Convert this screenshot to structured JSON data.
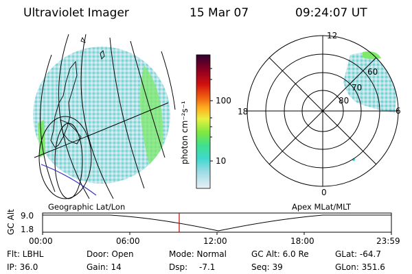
{
  "header": {
    "title": "Ultraviolet Imager",
    "date": "15 Mar 07",
    "time": "09:24:07 UT"
  },
  "colorbar": {
    "unit_label": "photon cm⁻²s⁻¹",
    "ticks": [
      "100",
      "10"
    ]
  },
  "polar_plot": {
    "mlt_labels": [
      "12",
      "18",
      "6",
      "0"
    ],
    "lat_labels": [
      "60",
      "70",
      "80"
    ]
  },
  "map_labels": {
    "left": "Geographic Lat/Lon",
    "right": "Apex MLat/MLT"
  },
  "altitude_plot": {
    "axis_label": "GC Alt",
    "y_ticks": [
      "9.0",
      "1.8"
    ],
    "x_ticks": [
      "00:00",
      "06:00",
      "12:00",
      "18:00",
      "23:59"
    ]
  },
  "footer": {
    "row1": {
      "filter": "Flt: LBHL",
      "door": "Door: Open",
      "mode": "Mode: Normal",
      "gc_alt": "GC Alt: 6.0 Re",
      "glat": "GLat: -64.7"
    },
    "row2": {
      "ip": "IP: 36.0",
      "gain": "Gain: 14",
      "dsp_label": "Dsp:",
      "dsp_value": "-7.1",
      "seq": "Seq: 39",
      "glon": "GLon: 351.6"
    }
  },
  "colors": {
    "colorbar_stops": [
      "#e8f0f4",
      "#a0dce6",
      "#40d8d0",
      "#40e090",
      "#80e840",
      "#e8f040",
      "#ffb020",
      "#f06010",
      "#d01010",
      "#900020",
      "#300030"
    ],
    "aurora_primary": "#9fe4e6",
    "aurora_strong": "#7ee86a",
    "time_cursor": "#cc0000"
  }
}
